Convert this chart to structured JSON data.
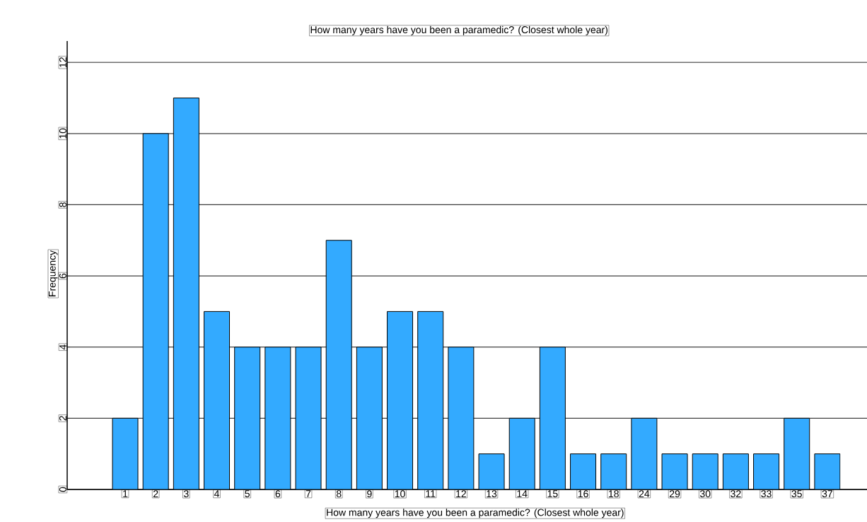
{
  "chart_data": {
    "type": "bar",
    "title": "How many years have you been a paramedic? (Closest whole year)",
    "xlabel": "How many years have you been a paramedic? (Closest whole year)",
    "ylabel": "Frequency",
    "categories": [
      "1",
      "2",
      "3",
      "4",
      "5",
      "6",
      "7",
      "8",
      "9",
      "10",
      "11",
      "12",
      "13",
      "14",
      "15",
      "16",
      "18",
      "24",
      "29",
      "30",
      "32",
      "33",
      "35",
      "37"
    ],
    "values": [
      2,
      10,
      11,
      5,
      4,
      4,
      4,
      7,
      4,
      5,
      5,
      4,
      1,
      2,
      4,
      1,
      1,
      2,
      1,
      1,
      1,
      1,
      2,
      1
    ],
    "color": "#33aaff",
    "ylim": [
      0,
      12.6
    ],
    "yticks": [
      0,
      2,
      4,
      6,
      8,
      10,
      12
    ],
    "grid": "y"
  }
}
